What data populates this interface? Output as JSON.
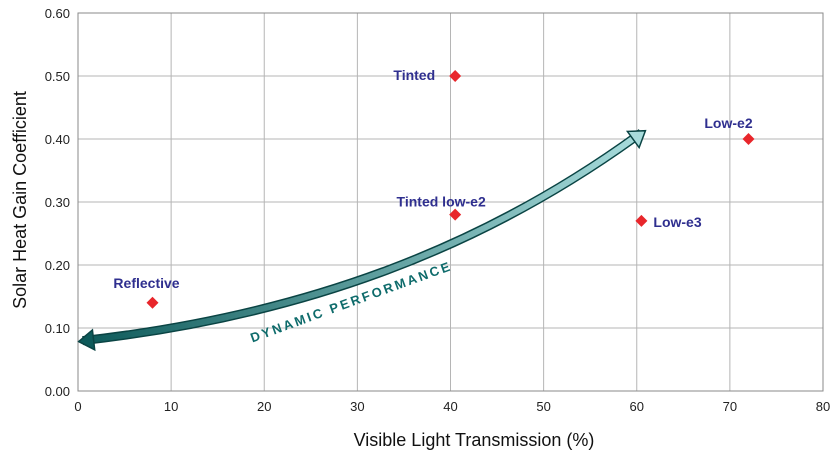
{
  "chart_data": {
    "type": "scatter",
    "title": "",
    "xlabel": "Visible Light Transmission (%)",
    "ylabel": "Solar Heat Gain Coefficient",
    "xlim": [
      0,
      80
    ],
    "ylim": [
      0,
      0.6
    ],
    "x_ticks": [
      0,
      10,
      20,
      30,
      40,
      50,
      60,
      70,
      80
    ],
    "y_ticks": [
      0.0,
      0.1,
      0.2,
      0.3,
      0.4,
      0.5,
      0.6
    ],
    "x_tick_labels": [
      "0",
      "10",
      "20",
      "30",
      "40",
      "50",
      "60",
      "70",
      "80"
    ],
    "y_tick_labels": [
      "0.00",
      "0.10",
      "0.20",
      "0.30",
      "0.40",
      "0.50",
      "0.60"
    ],
    "grid": true,
    "marker": "diamond",
    "marker_color": "#e8262b",
    "label_color": "#2f2f8f",
    "points": [
      {
        "label": "Reflective",
        "x": 8,
        "y": 0.14
      },
      {
        "label": "Tinted",
        "x": 40.5,
        "y": 0.5
      },
      {
        "label": "Tinted low-e2",
        "x": 40.5,
        "y": 0.28
      },
      {
        "label": "Low-e3",
        "x": 60.5,
        "y": 0.27
      },
      {
        "label": "Low-e2",
        "x": 72,
        "y": 0.4
      }
    ],
    "annotation": {
      "text": "DYNAMIC PERFORMANCE",
      "type": "double-headed curved arrow",
      "from": {
        "x": 0.5,
        "y": 0.08
      },
      "to": {
        "x": 60.5,
        "y": 0.41
      },
      "color_dark": "#0d5a5a",
      "color_light": "#a8dcdc"
    }
  }
}
